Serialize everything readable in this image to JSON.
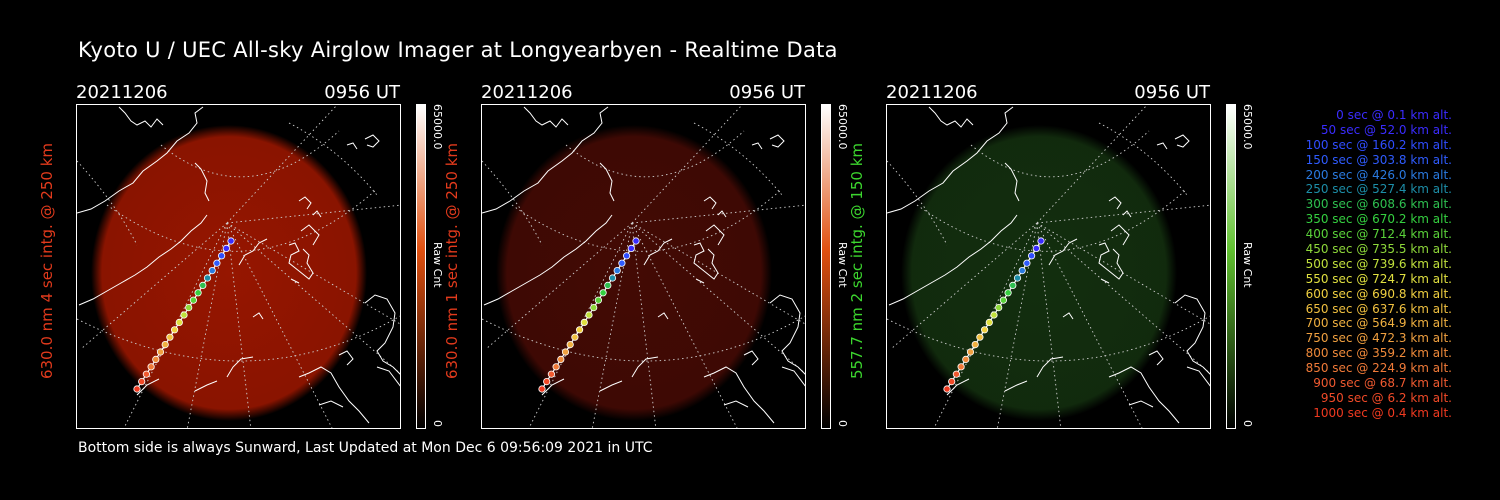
{
  "title": "Kyoto U / UEC All-sky Airglow Imager at Longyearbyen - Realtime Data",
  "footer": "Bottom side is always Sunward, Last Updated at Mon Dec  6 09:56:09 2021 in UTC",
  "panels": [
    {
      "date": "20211206",
      "time": "0956 UT",
      "side_label": "630.0 nm 4 sec intg. @ 250 km",
      "label_color": "#e23a1c",
      "glow_color": "#d01e00",
      "glow_opacity": 0.72,
      "cbar_top": "#ffffff",
      "cbar_mid": "#e05010",
      "cbar_bottom": "#000000",
      "cbar_max": "65000.0",
      "cbar_unit": "Raw Cnt",
      "cbar_min": "0"
    },
    {
      "date": "20211206",
      "time": "0956 UT",
      "side_label": "630.0 nm 1 sec intg. @ 250 km",
      "label_color": "#e23a1c",
      "glow_color": "#7a1208",
      "glow_opacity": 0.55,
      "cbar_top": "#ffffff",
      "cbar_mid": "#e05010",
      "cbar_bottom": "#000000",
      "cbar_max": "65000.0",
      "cbar_unit": "Raw Cnt",
      "cbar_min": "0"
    },
    {
      "date": "20211206",
      "time": "0956 UT",
      "side_label": "557.7 nm 2 sec intg. @ 150 km",
      "label_color": "#3cd62e",
      "glow_color": "#1f4d18",
      "glow_opacity": 0.6,
      "cbar_top": "#ffffff",
      "cbar_mid": "#60c030",
      "cbar_bottom": "#000000",
      "cbar_max": "65000.0",
      "cbar_unit": "Raw Cnt",
      "cbar_min": "0"
    }
  ],
  "legend": [
    {
      "text": "0 sec @   0.1 km alt.",
      "color": "#3a2cff"
    },
    {
      "text": "50 sec @  52.0 km alt.",
      "color": "#3a2cff"
    },
    {
      "text": "100 sec @ 160.2 km alt.",
      "color": "#2f4dff"
    },
    {
      "text": "150 sec @ 303.8 km alt.",
      "color": "#2f5cff"
    },
    {
      "text": "200 sec @ 426.0 km alt.",
      "color": "#2a7ae0"
    },
    {
      "text": "250 sec @ 527.4 km alt.",
      "color": "#1d8ea8"
    },
    {
      "text": "300 sec @ 608.6 km alt.",
      "color": "#2ec050"
    },
    {
      "text": "350 sec @ 670.2 km alt.",
      "color": "#35d040"
    },
    {
      "text": "400 sec @ 712.4 km alt.",
      "color": "#5ad23a"
    },
    {
      "text": "450 sec @ 735.5 km alt.",
      "color": "#8ed83a"
    },
    {
      "text": "500 sec @ 739.6 km alt.",
      "color": "#c0e03c"
    },
    {
      "text": "550 sec @ 724.7 km alt.",
      "color": "#e0e040"
    },
    {
      "text": "600 sec @ 690.8 km alt.",
      "color": "#f0d040"
    },
    {
      "text": "650 sec @ 637.6 km alt.",
      "color": "#f0c040"
    },
    {
      "text": "700 sec @ 564.9 km alt.",
      "color": "#f0b040"
    },
    {
      "text": "750 sec @ 472.3 km alt.",
      "color": "#f0a040"
    },
    {
      "text": "800 sec @ 359.2 km alt.",
      "color": "#f08a3a"
    },
    {
      "text": "850 sec @ 224.9 km alt.",
      "color": "#f07a38"
    },
    {
      "text": "900 sec @  68.7 km alt.",
      "color": "#f05a30"
    },
    {
      "text": "950 sec @   6.2 km alt.",
      "color": "#f04a28"
    },
    {
      "text": "1000 sec @   0.4 km alt.",
      "color": "#f03a20"
    }
  ]
}
